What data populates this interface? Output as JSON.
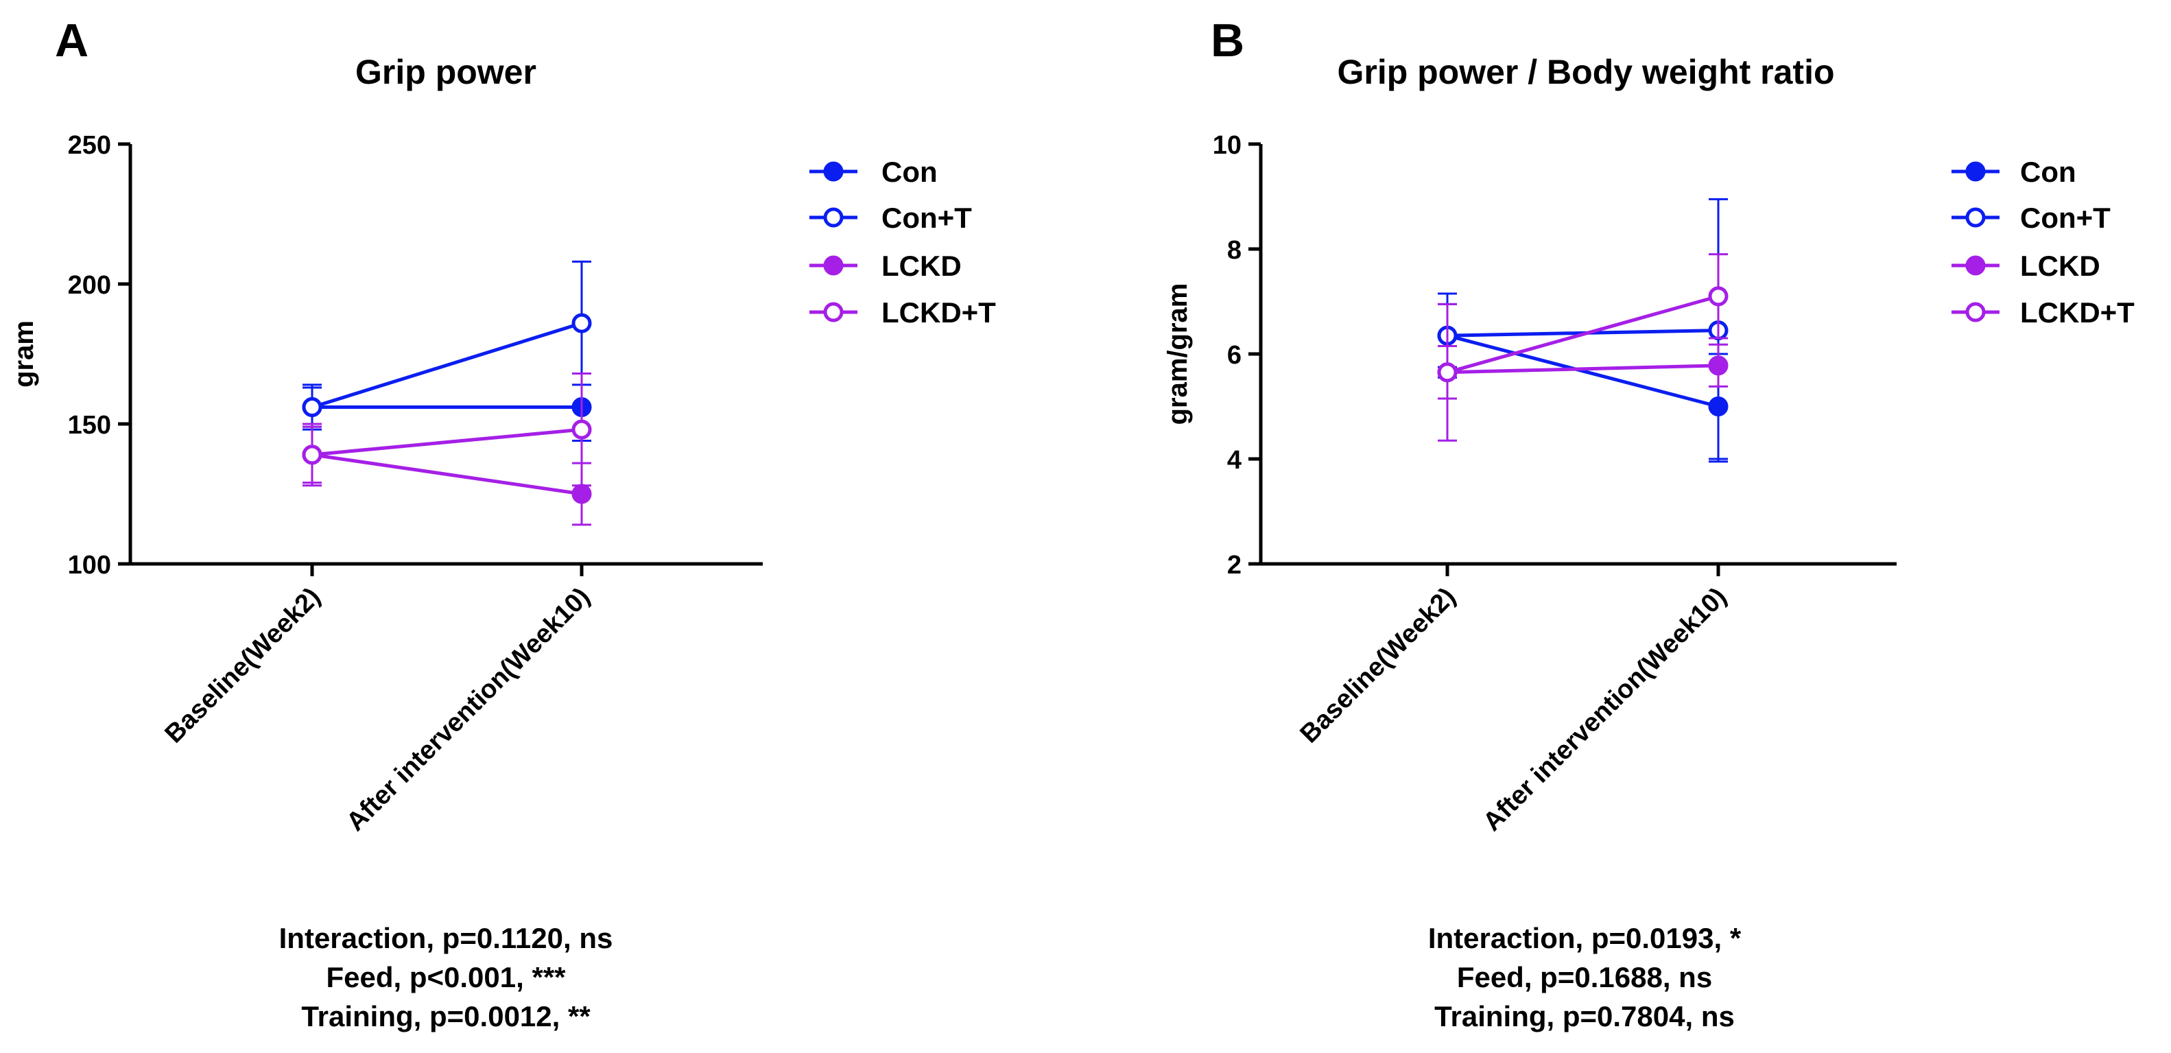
{
  "colors": {
    "con": "#0b1ef0",
    "lckd": "#a51fe6",
    "axis": "#000000"
  },
  "legend": [
    {
      "name": "Con",
      "color": "#0b1ef0",
      "filled": true
    },
    {
      "name": "Con+T",
      "color": "#0b1ef0",
      "filled": false
    },
    {
      "name": "LCKD",
      "color": "#a51fe6",
      "filled": true
    },
    {
      "name": "LCKD+T",
      "color": "#a51fe6",
      "filled": false
    }
  ],
  "chart_data": [
    {
      "panel": "A",
      "type": "line",
      "title": "Grip power",
      "xlabel": "",
      "ylabel": "gram",
      "categories": [
        "Baseline(Week2)",
        "After intervention(Week10)"
      ],
      "ylim": [
        100,
        250
      ],
      "yticks": [
        100,
        150,
        200,
        250
      ],
      "ytick_labels": [
        "100",
        "150",
        "200",
        "250"
      ],
      "series": [
        {
          "name": "Con",
          "filled": true,
          "values": [
            156,
            156
          ],
          "errors": [
            7,
            12
          ]
        },
        {
          "name": "Con+T",
          "filled": false,
          "values": [
            156,
            186
          ],
          "errors": [
            8,
            22
          ]
        },
        {
          "name": "LCKD",
          "filled": true,
          "values": [
            139,
            125
          ],
          "errors": [
            11,
            11
          ]
        },
        {
          "name": "LCKD+T",
          "filled": false,
          "values": [
            139,
            148
          ],
          "errors": [
            10,
            20
          ]
        }
      ],
      "stats": [
        "Interaction, p=0.1120, ns",
        "Feed, p<0.001, ***",
        "Training, p=0.0012, **"
      ]
    },
    {
      "panel": "B",
      "type": "line",
      "title": "Grip power / Body weight ratio",
      "xlabel": "",
      "ylabel": "gram/gram",
      "categories": [
        "Baseline(Week2)",
        "After intervention(Week10)"
      ],
      "ylim": [
        2,
        10
      ],
      "yticks": [
        2,
        4,
        6,
        8,
        10
      ],
      "ytick_labels": [
        "2",
        "4",
        "6",
        "8",
        "10"
      ],
      "series": [
        {
          "name": "Con",
          "filled": true,
          "values": [
            6.35,
            5.0
          ],
          "errors": [
            0.6,
            1.0
          ]
        },
        {
          "name": "Con+T",
          "filled": false,
          "values": [
            6.35,
            6.45
          ],
          "errors": [
            0.8,
            2.5
          ]
        },
        {
          "name": "LCKD",
          "filled": true,
          "values": [
            5.65,
            5.78
          ],
          "errors": [
            0.5,
            0.4
          ]
        },
        {
          "name": "LCKD+T",
          "filled": false,
          "values": [
            5.65,
            7.1
          ],
          "errors": [
            1.3,
            0.8
          ]
        }
      ],
      "stats": [
        "Interaction, p=0.0193, *",
        "Feed, p=0.1688, ns",
        "Training, p=0.7804, ns"
      ]
    }
  ]
}
